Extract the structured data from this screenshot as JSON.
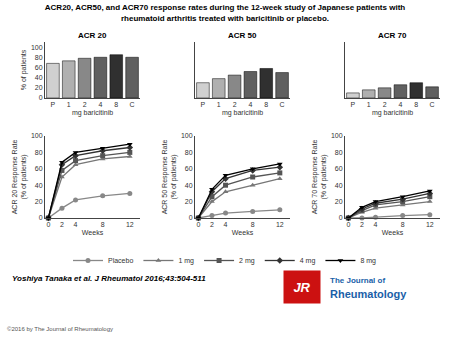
{
  "chart_data": [
    {
      "type": "bar",
      "title": "ACR20, ACR50, and ACR70 response rates during the 12-week study of Japanese patients with\nrheumatoid arthritis treated with baricitinib or placebo.",
      "categories": [
        "P",
        "1",
        "2",
        "4",
        "8",
        "C"
      ],
      "xlabel": "mg baricitinib",
      "ylabel": "% of patients",
      "ylim": [
        0,
        110
      ],
      "yticks": [
        0,
        20,
        40,
        60,
        80,
        100
      ],
      "grid": false,
      "series": [
        {
          "name": "ACR 20",
          "values": [
            68,
            73,
            78,
            80,
            85,
            80
          ],
          "colors": [
            "#d0d0d0",
            "#b0b0b0",
            "#888888",
            "#606060",
            "#303030",
            "#606060"
          ]
        },
        {
          "name": "ACR 50",
          "values": [
            30,
            38,
            45,
            52,
            58,
            50
          ],
          "colors": [
            "#d0d0d0",
            "#b0b0b0",
            "#888888",
            "#606060",
            "#303030",
            "#606060"
          ]
        },
        {
          "name": "ACR 70",
          "values": [
            10,
            16,
            20,
            26,
            30,
            22
          ],
          "colors": [
            "#d0d0d0",
            "#b0b0b0",
            "#888888",
            "#606060",
            "#303030",
            "#606060"
          ]
        }
      ],
      "annotations": [
        "Yoshiya Tanaka et al. J Rheumatol 2016;43:504-511",
        "©2016 by The Journal of Rheumatology",
        "The Journal of",
        "Rheumatology",
        "JR"
      ]
    },
    {
      "type": "line",
      "x": [
        0,
        2,
        4,
        8,
        12
      ],
      "xlabel": "Weeks",
      "ylabel": "ACR 20 Response Rate\n(% of patients)",
      "xlim": [
        -0.5,
        13.5
      ],
      "xticks": [
        0,
        2,
        4,
        8,
        12
      ],
      "ylim": [
        0,
        100
      ],
      "yticks": [
        0,
        20,
        40,
        60,
        80,
        100
      ],
      "grid": false,
      "legend": "bottom",
      "series": [
        {
          "name": "Placebo",
          "color": "#888888",
          "marker": "circle",
          "values": [
            0,
            12,
            22,
            27,
            30
          ]
        },
        {
          "name": "1 mg",
          "color": "#777777",
          "marker": "triangle-up",
          "values": [
            0,
            50,
            65,
            72,
            75
          ]
        },
        {
          "name": "2 mg",
          "color": "#555555",
          "marker": "square",
          "values": [
            0,
            58,
            70,
            76,
            80
          ]
        },
        {
          "name": "4 mg",
          "color": "#333333",
          "marker": "diamond",
          "values": [
            0,
            65,
            76,
            82,
            86
          ]
        },
        {
          "name": "8 mg",
          "color": "#000000",
          "marker": "triangle-down",
          "values": [
            0,
            68,
            80,
            85,
            90
          ]
        }
      ]
    },
    {
      "type": "line",
      "x": [
        0,
        2,
        4,
        8,
        12
      ],
      "xlabel": "Weeks",
      "ylabel": "ACR 50 Response Rate\n(% of patients)",
      "xlim": [
        -0.5,
        13.5
      ],
      "xticks": [
        0,
        2,
        4,
        8,
        12
      ],
      "ylim": [
        0,
        100
      ],
      "yticks": [
        0,
        20,
        40,
        60,
        80,
        100
      ],
      "grid": false,
      "series": [
        {
          "name": "Placebo",
          "color": "#888888",
          "marker": "circle",
          "values": [
            0,
            3,
            6,
            8,
            10
          ]
        },
        {
          "name": "1 mg",
          "color": "#777777",
          "marker": "triangle-up",
          "values": [
            0,
            20,
            32,
            40,
            48
          ]
        },
        {
          "name": "2 mg",
          "color": "#555555",
          "marker": "square",
          "values": [
            0,
            26,
            40,
            50,
            55
          ]
        },
        {
          "name": "4 mg",
          "color": "#333333",
          "marker": "diamond",
          "values": [
            0,
            32,
            48,
            58,
            62
          ]
        },
        {
          "name": "8 mg",
          "color": "#000000",
          "marker": "triangle-down",
          "values": [
            0,
            35,
            52,
            60,
            66
          ]
        }
      ]
    },
    {
      "type": "line",
      "x": [
        0,
        2,
        4,
        8,
        12
      ],
      "xlabel": "Weeks",
      "ylabel": "ACR 70 Response Rate\n(% of patients)",
      "xlim": [
        -0.5,
        13.5
      ],
      "xticks": [
        0,
        2,
        4,
        8,
        12
      ],
      "ylim": [
        0,
        100
      ],
      "yticks": [
        0,
        20,
        40,
        60,
        80,
        100
      ],
      "grid": false,
      "series": [
        {
          "name": "Placebo",
          "color": "#888888",
          "marker": "circle",
          "values": [
            0,
            0,
            1,
            3,
            4
          ]
        },
        {
          "name": "1 mg",
          "color": "#777777",
          "marker": "triangle-up",
          "values": [
            0,
            7,
            12,
            16,
            20
          ]
        },
        {
          "name": "2 mg",
          "color": "#555555",
          "marker": "square",
          "values": [
            0,
            9,
            16,
            20,
            26
          ]
        },
        {
          "name": "4 mg",
          "color": "#333333",
          "marker": "diamond",
          "values": [
            0,
            11,
            18,
            23,
            30
          ]
        },
        {
          "name": "8 mg",
          "color": "#000000",
          "marker": "triangle-down",
          "values": [
            0,
            13,
            20,
            26,
            33
          ]
        }
      ]
    }
  ]
}
